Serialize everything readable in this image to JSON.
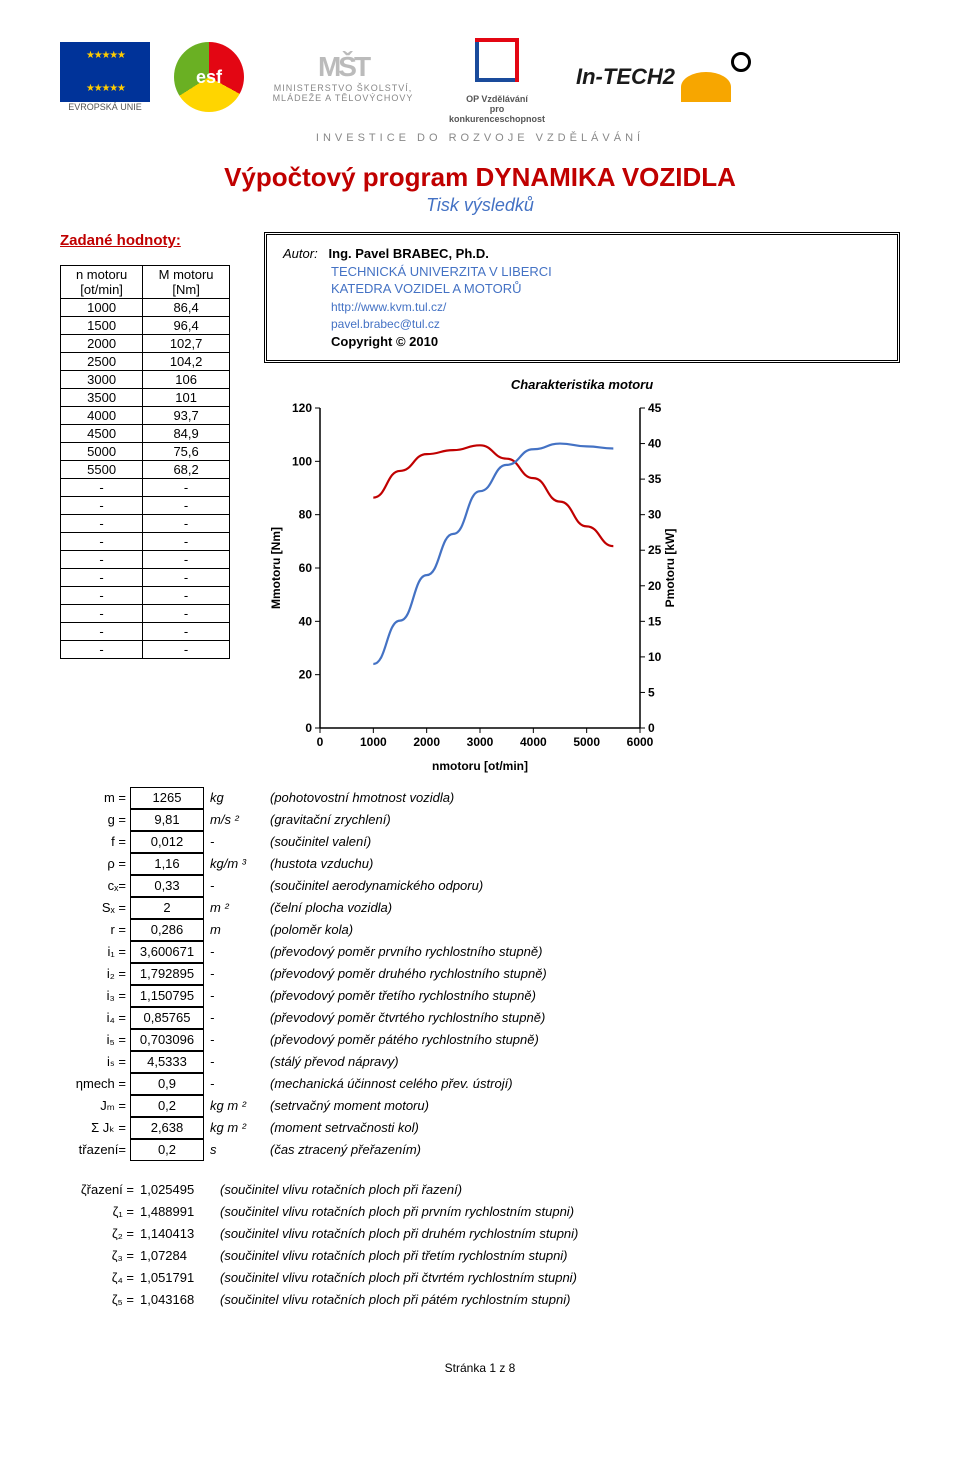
{
  "logos": {
    "eu_label": "EVROPSKÁ UNIE",
    "esf_text": "esf",
    "msmt_top": "MŠT",
    "msmt_line1": "MINISTERSTVO ŠKOLSTVÍ,",
    "msmt_line2": "MLÁDEŽE A TĚLOVÝCHOVY",
    "op_line1": "OP Vzdělávání",
    "op_line2": "pro konkurenceschopnost",
    "intech": "In-TECH2"
  },
  "tagline": "INVESTICE DO ROZVOJE VZDĚLÁVÁNÍ",
  "title": "Výpočtový program DYNAMIKA VOZIDLA",
  "subtitle": "Tisk výsledků",
  "zadane": "Zadané hodnoty:",
  "motor_table": {
    "head_n": "n motoru",
    "head_n_unit": "[ot/min]",
    "head_m": "M motoru",
    "head_m_unit": "[Nm]",
    "rows": [
      [
        "1000",
        "86,4"
      ],
      [
        "1500",
        "96,4"
      ],
      [
        "2000",
        "102,7"
      ],
      [
        "2500",
        "104,2"
      ],
      [
        "3000",
        "106"
      ],
      [
        "3500",
        "101"
      ],
      [
        "4000",
        "93,7"
      ],
      [
        "4500",
        "84,9"
      ],
      [
        "5000",
        "75,6"
      ],
      [
        "5500",
        "68,2"
      ],
      [
        "-",
        "-"
      ],
      [
        "-",
        "-"
      ],
      [
        "-",
        "-"
      ],
      [
        "-",
        "-"
      ],
      [
        "-",
        "-"
      ],
      [
        "-",
        "-"
      ],
      [
        "-",
        "-"
      ],
      [
        "-",
        "-"
      ],
      [
        "-",
        "-"
      ],
      [
        "-",
        "-"
      ]
    ]
  },
  "autor": {
    "lbl": "Autor:",
    "name": "Ing. Pavel BRABEC, Ph.D.",
    "inst1": "TECHNICKÁ UNIVERZITA V LIBERCI",
    "inst2": "KATEDRA VOZIDEL A MOTORŮ",
    "url": "http://www.kvm.tul.cz/",
    "email": "pavel.brabec@tul.cz",
    "copyright": "Copyright © 2010"
  },
  "chart": {
    "title": "Charakteristika motoru",
    "xlabel": "n_motoru [ot/min]",
    "ylabel_left": "M_motoru [Nm]",
    "ylabel_right": "P_motoru [kW]",
    "xlim": [
      0,
      6000
    ],
    "xtick_step": 1000,
    "ylim_left": [
      0,
      120
    ],
    "ytick_left_step": 20,
    "ylim_right": [
      0,
      45
    ],
    "ytick_right_step": 5,
    "background": "#ffffff",
    "axis_color": "#000000",
    "font_size": 12,
    "series": [
      {
        "name": "M_motoru",
        "color": "#c00000",
        "width": 2.2,
        "axis": "left",
        "x": [
          1000,
          1500,
          2000,
          2500,
          3000,
          3500,
          4000,
          4500,
          5000,
          5500
        ],
        "y": [
          86.4,
          96.4,
          102.7,
          104.2,
          106,
          101,
          93.7,
          84.9,
          75.6,
          68.2
        ]
      },
      {
        "name": "P_motoru",
        "color": "#4472c4",
        "width": 2.2,
        "axis": "right",
        "x": [
          1000,
          1500,
          2000,
          2500,
          3000,
          3500,
          4000,
          4500,
          5000,
          5500
        ],
        "y": [
          9.0,
          15.1,
          21.5,
          27.3,
          33.3,
          37.0,
          39.2,
          40.0,
          39.6,
          39.3
        ]
      }
    ]
  },
  "params": [
    {
      "sym": "m =",
      "val": "1265",
      "unit": "kg",
      "desc": "(pohotovostní hmotnost vozidla)"
    },
    {
      "sym": "g =",
      "val": "9,81",
      "unit": "m/s ²",
      "desc": "(gravitační zrychlení)"
    },
    {
      "sym": "f =",
      "val": "0,012",
      "unit": "-",
      "desc": "(součinitel valení)"
    },
    {
      "sym": "ρ =",
      "val": "1,16",
      "unit": "kg/m ³",
      "desc": "(hustota vzduchu)"
    },
    {
      "sym": "cₓ=",
      "val": "0,33",
      "unit": "-",
      "desc": "(součinitel aerodynamického odporu)"
    },
    {
      "sym": "Sₓ =",
      "val": "2",
      "unit": "m ²",
      "desc": "(čelní plocha vozidla)"
    },
    {
      "sym": "r =",
      "val": "0,286",
      "unit": "m",
      "desc": "(poloměr kola)"
    },
    {
      "sym": "i₁ =",
      "val": "3,600671",
      "unit": "-",
      "desc": "(převodový poměr prvního rychlostního stupně)"
    },
    {
      "sym": "i₂ =",
      "val": "1,792895",
      "unit": "-",
      "desc": "(převodový poměr druhého rychlostního stupně)"
    },
    {
      "sym": "i₃ =",
      "val": "1,150795",
      "unit": "-",
      "desc": "(převodový poměr třetího rychlostního stupně)"
    },
    {
      "sym": "i₄ =",
      "val": "0,85765",
      "unit": "-",
      "desc": "(převodový poměr čtvrtého rychlostního stupně)"
    },
    {
      "sym": "i₅ =",
      "val": "0,703096",
      "unit": "-",
      "desc": "(převodový poměr pátého rychlostního stupně)"
    },
    {
      "sym": "iₛ =",
      "val": "4,5333",
      "unit": "-",
      "desc": "(stálý převod nápravy)"
    },
    {
      "sym": "ηmech =",
      "val": "0,9",
      "unit": "-",
      "desc": "(mechanická účinnost celého přev. ústrojí)"
    },
    {
      "sym": "Jₘ =",
      "val": "0,2",
      "unit": "kg m ²",
      "desc": "(setrvačný moment motoru)"
    },
    {
      "sym": "Σ Jₖ =",
      "val": "2,638",
      "unit": "kg m ²",
      "desc": "(moment setrvačnosti kol)"
    },
    {
      "sym": "třazení=",
      "val": "0,2",
      "unit": "s",
      "desc": "(čas ztracený přeřazením)"
    }
  ],
  "zetas": [
    {
      "sym": "ζřazení =",
      "val": "1,025495",
      "desc": "(součinitel vlivu rotačních ploch při řazení)"
    },
    {
      "sym": "ζ₁ =",
      "val": "1,488991",
      "desc": "(součinitel vlivu rotačních ploch při prvním rychlostním stupni)"
    },
    {
      "sym": "ζ₂ =",
      "val": "1,140413",
      "desc": "(součinitel vlivu rotačních ploch při druhém rychlostním stupni)"
    },
    {
      "sym": "ζ₃ =",
      "val": "1,07284",
      "desc": "(součinitel vlivu rotačních ploch při třetím rychlostním stupni)"
    },
    {
      "sym": "ζ₄ =",
      "val": "1,051791",
      "desc": "(součinitel vlivu rotačních ploch při čtvrtém rychlostním stupni)"
    },
    {
      "sym": "ζ₅ =",
      "val": "1,043168",
      "desc": "(součinitel vlivu rotačních ploch při pátém rychlostním stupni)"
    }
  ],
  "footer": "Stránka 1 z 8"
}
